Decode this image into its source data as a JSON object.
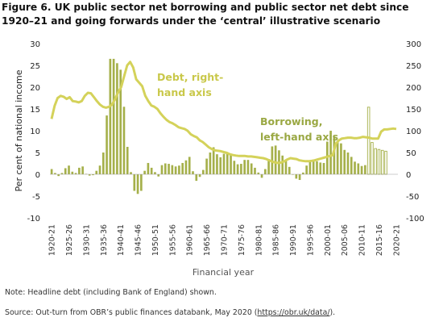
{
  "title": "Figure 6. UK public sector net borrowing and public sector net debt since 1920–21 and going forwards under the ‘central’ illustrative scenario",
  "notes": {
    "note": "Note: Headline debt (including Bank of England) shown.",
    "source_prefix": "Source: Out-turn from OBR’s public finances databank, May 2020 (",
    "source_url": "https://obr.uk/data/",
    "source_suffix": ")."
  },
  "chart_data": {
    "type": "bar",
    "title": "Figure 6. UK public sector net borrowing and public sector net debt since 1920–21 and going forwards under the ‘central’ illustrative scenario",
    "xlabel": "Financial year",
    "ylabel": "Per cent of national income",
    "ylim": [
      -10,
      30
    ],
    "y_ticks": [
      -10,
      -5,
      0,
      5,
      10,
      15,
      20,
      25,
      30
    ],
    "y2lim": [
      -100,
      300
    ],
    "y2_ticks": [
      -100,
      -50,
      0,
      50,
      100,
      150,
      200,
      250,
      300
    ],
    "x_tick_labels": [
      "1920-21",
      "1925-26",
      "1930-31",
      "1935-36",
      "1940-41",
      "1945-46",
      "1950-51",
      "1955-56",
      "1960-61",
      "1965-66",
      "1970-71",
      "1975-76",
      "1980-81",
      "1985-86",
      "1990-91",
      "1995-96",
      "2000-01",
      "2005-06",
      "2010-11",
      "2015-16",
      "2020-21"
    ],
    "grid": false,
    "colors": {
      "bars": "#a5b04a",
      "bar_edge": "#7f8a2c",
      "line": "#d4d25a",
      "projection_bar_fill": "#ffffff",
      "annotation_text": "#c9c84a",
      "borrowing_text": "#9aa843"
    },
    "annotations": [
      "Debt, right-hand axis",
      "Borrowing, left-hand axis"
    ],
    "series": [
      {
        "name": "Borrowing, left-hand axis",
        "axis": "left",
        "type": "bar",
        "start_year": 1920,
        "values": [
          1.2,
          0.3,
          -0.4,
          0.3,
          1.4,
          2.0,
          0.6,
          0.3,
          1.5,
          1.8,
          0.1,
          -0.3,
          -0.2,
          0.8,
          2.0,
          5.0,
          13.5,
          26.5,
          26.5,
          25.5,
          24.0,
          15.5,
          6.3,
          0.5,
          -3.8,
          -4.5,
          -3.8,
          0.8,
          2.6,
          1.5,
          0.5,
          -0.5,
          2.1,
          2.5,
          2.4,
          2.1,
          1.8,
          2.0,
          2.6,
          3.2,
          4.0,
          0.7,
          -1.5,
          -0.6,
          1.0,
          3.6,
          5.0,
          6.2,
          4.6,
          3.9,
          4.7,
          5.0,
          4.4,
          3.1,
          2.3,
          2.4,
          3.3,
          3.3,
          2.5,
          1.5,
          0.4,
          -0.8,
          1.2,
          3.5,
          6.4,
          6.6,
          5.5,
          4.3,
          3.4,
          1.7,
          0.0,
          -1.0,
          -1.3,
          0.4,
          2.0,
          2.9,
          3.1,
          3.0,
          2.7,
          2.6,
          7.5,
          10.0,
          8.7,
          7.4,
          7.1,
          5.6,
          5.0,
          4.0,
          2.9,
          2.5,
          1.9,
          2.1,
          15.4,
          7.3,
          5.9,
          5.7,
          5.5,
          5.3
        ]
      },
      {
        "name": "Debt, right-hand axis",
        "axis": "right",
        "type": "line",
        "start_year": 1920,
        "values": [
          127,
          157,
          175,
          180,
          178,
          173,
          177,
          168,
          167,
          165,
          168,
          180,
          187,
          186,
          177,
          168,
          160,
          155,
          153,
          155,
          160,
          172,
          188,
          200,
          225,
          250,
          258,
          245,
          218,
          210,
          202,
          180,
          168,
          158,
          155,
          150,
          140,
          132,
          125,
          120,
          117,
          113,
          108,
          106,
          104,
          100,
          92,
          88,
          85,
          78,
          74,
          68,
          62,
          58,
          55,
          54,
          53,
          51,
          49,
          46,
          44,
          43,
          42,
          42,
          42,
          41,
          41,
          40,
          39,
          38,
          37,
          35,
          32,
          29,
          27,
          26,
          27,
          30,
          34,
          37,
          36,
          35,
          32,
          31,
          30,
          30,
          31,
          32,
          34,
          36,
          38,
          40,
          42,
          44,
          70,
          78,
          82,
          83,
          84,
          84,
          83,
          83,
          84,
          86,
          85,
          84,
          82,
          82,
          82,
          98,
          103,
          103,
          104,
          105,
          104
        ]
      }
    ]
  }
}
